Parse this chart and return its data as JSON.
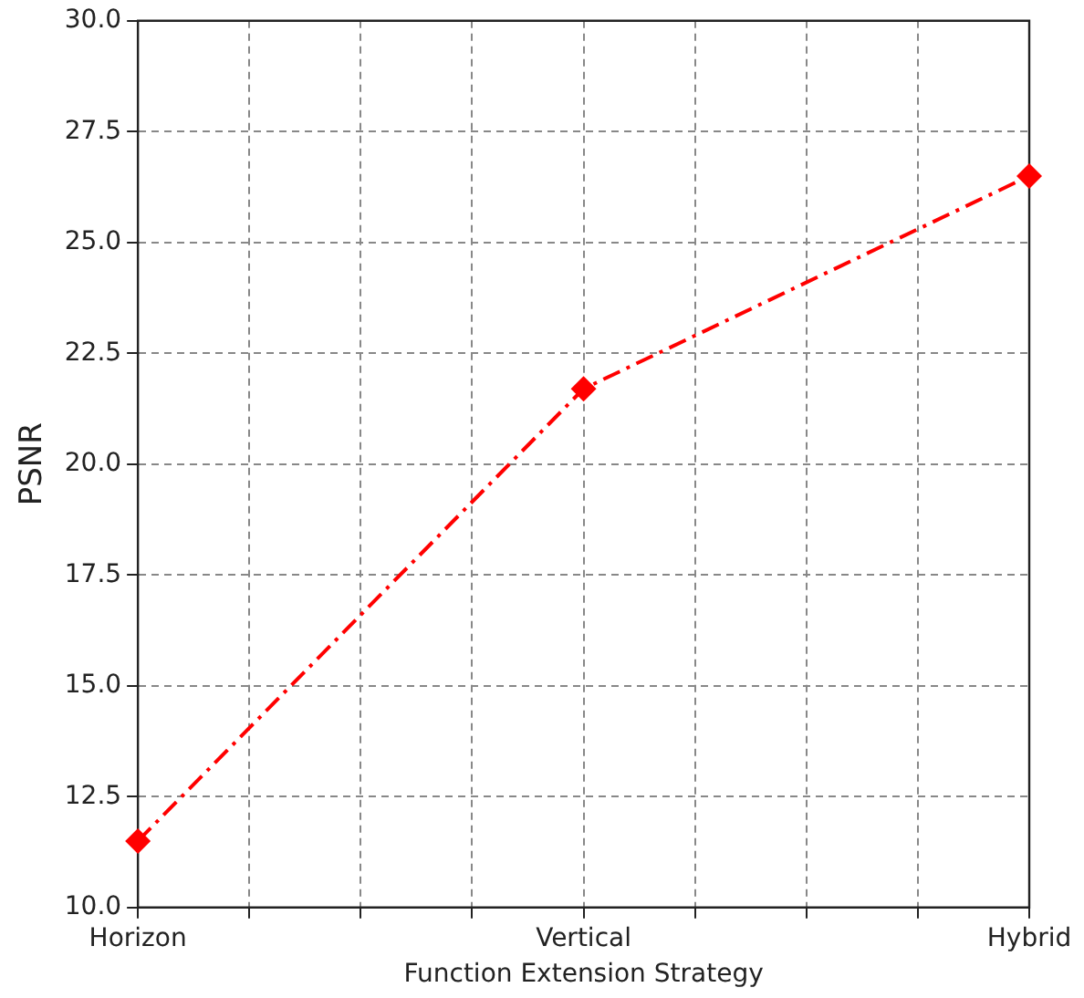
{
  "chart_data": {
    "type": "line",
    "xlabel": "Function Extension Strategy",
    "ylabel": "PSNR",
    "categories": [
      "Horizon",
      null,
      null,
      null,
      "Vertical",
      null,
      null,
      null,
      "Hybrid"
    ],
    "series": [
      {
        "color": "#ff0000",
        "values": [
          11.5,
          null,
          null,
          null,
          21.7,
          null,
          null,
          null,
          26.5
        ]
      }
    ],
    "ylim": [
      10,
      30
    ],
    "yticks": [
      {
        "value": 10,
        "label": "10.0"
      },
      {
        "value": 12.5,
        "label": "12.5"
      },
      {
        "value": 15,
        "label": "15.0"
      },
      {
        "value": 17.5,
        "label": "17.5"
      },
      {
        "value": 20,
        "label": "20.0"
      },
      {
        "value": 22.5,
        "label": "22.5"
      },
      {
        "value": 25,
        "label": "25.0"
      },
      {
        "value": 27.5,
        "label": "27.5"
      },
      {
        "value": 30,
        "label": "30.0"
      }
    ],
    "grid": true,
    "marker": "diamond",
    "line_style": "dashed"
  }
}
